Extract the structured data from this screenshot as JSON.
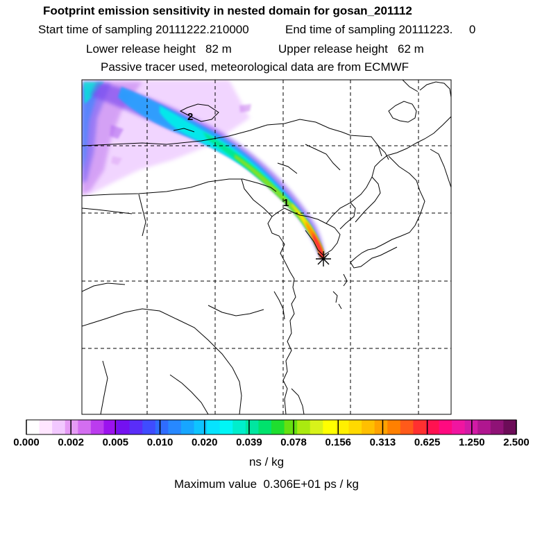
{
  "header": {
    "title": "Footprint emission sensitivity in nested domain for gosan_201112",
    "start_sampling": "Start time of sampling 20111222.210000",
    "end_sampling": "End time of sampling 20111223.     0",
    "lower_release": "Lower release height   82 m",
    "upper_release": "Upper release height   62 m",
    "tracer_note": "Passive tracer used, meteorological data are from ECMWF"
  },
  "map": {
    "markers": [
      {
        "label": "2"
      },
      {
        "label": "1"
      }
    ],
    "release_site_icon": "asterisk-star-icon"
  },
  "colorbar": {
    "colors": [
      "#ffffff",
      "#ffe6ff",
      "#f2c8ff",
      "#e59bf5",
      "#d36ef0",
      "#bb3cee",
      "#9b12ee",
      "#7411f0",
      "#5a2df8",
      "#3f4cff",
      "#2f6cff",
      "#2788ff",
      "#17a6ff",
      "#0ec4ff",
      "#06e3ff",
      "#00f6f6",
      "#00eecc",
      "#00e6a0",
      "#00e26c",
      "#1fde2f",
      "#66e010",
      "#aaea10",
      "#d8f21a",
      "#ffff00",
      "#fff000",
      "#ffd900",
      "#ffbf00",
      "#ffa200",
      "#ff8000",
      "#ff5a1a",
      "#ff3030",
      "#ff1250",
      "#ff0a80",
      "#f015a0",
      "#d21aa5",
      "#b0168f",
      "#8f1276",
      "#6c0c58"
    ],
    "tick_labels": [
      "0.000",
      "0.002",
      "0.005",
      "0.010",
      "0.020",
      "0.039",
      "0.078",
      "0.156",
      "0.313",
      "0.625",
      "1.250",
      "2.500"
    ],
    "units": "ns / kg"
  },
  "max_value": "Maximum value  0.306E+01 ps / kg"
}
